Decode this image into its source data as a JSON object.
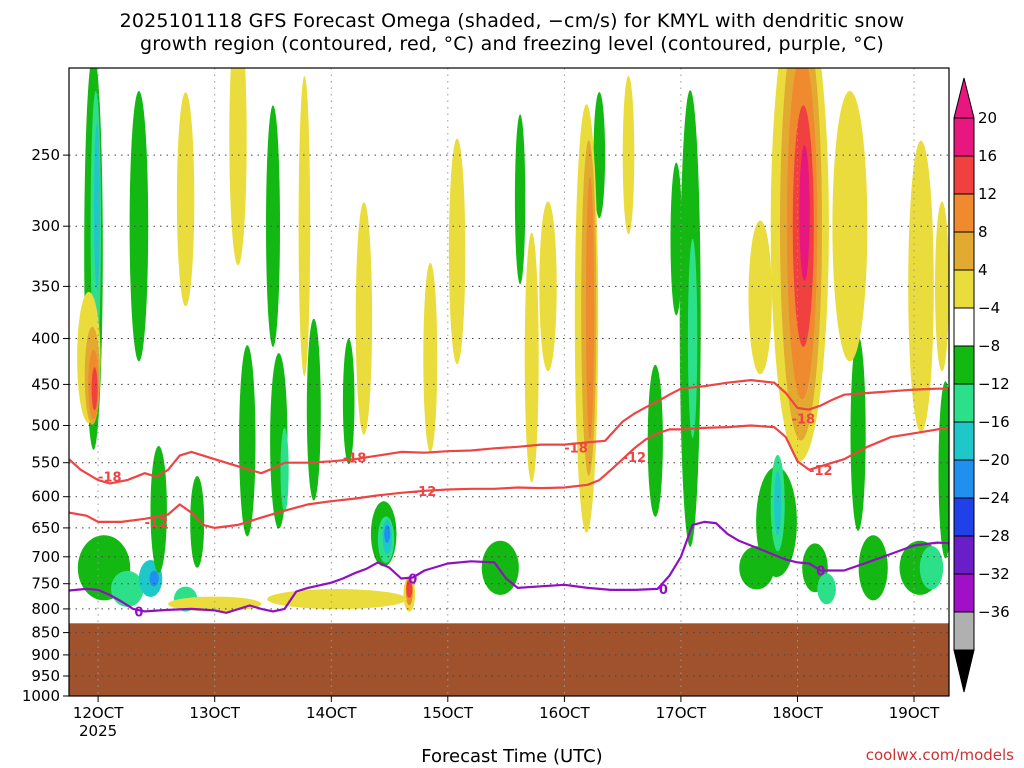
{
  "header": {
    "title_line1": "2025101118 GFS Forecast Omega (shaded, −cm/s) for KMYL with dendritic snow",
    "title_line2": "growth region (contoured, red, °C) and freezing level (contoured, purple, °C)"
  },
  "footer": {
    "credit": "coolwx.com/models"
  },
  "chart_data": {
    "type": "heatmap",
    "title": "2025101118 GFS Forecast Omega (shaded, −cm/s) for KMYL with dendritic snow growth region (contoured, red, °C) and freezing level (contoured, purple, °C)",
    "xlabel": "Forecast Time (UTC)",
    "ylabel": "",
    "y_scale": "log-pressure (hPa), inverted",
    "ylim": [
      1000,
      200
    ],
    "xlim_hours": [
      117.5,
      193
    ],
    "x_ticks": [
      {
        "label": "12OCT",
        "hour": 120,
        "sub": "2025"
      },
      {
        "label": "13OCT",
        "hour": 130,
        "sub": ""
      },
      {
        "label": "14OCT",
        "hour": 140,
        "sub": ""
      },
      {
        "label": "15OCT",
        "hour": 150,
        "sub": ""
      },
      {
        "label": "16OCT",
        "hour": 160,
        "sub": ""
      },
      {
        "label": "17OCT",
        "hour": 170,
        "sub": ""
      },
      {
        "label": "18OCT",
        "hour": 180,
        "sub": ""
      },
      {
        "label": "19OCT",
        "hour": 190,
        "sub": ""
      }
    ],
    "y_ticks": [
      250,
      300,
      350,
      400,
      450,
      500,
      550,
      600,
      650,
      700,
      750,
      800,
      850,
      900,
      950,
      1000
    ],
    "grid": true,
    "colorbar": {
      "placement": "right",
      "labels": [
        "20",
        "16",
        "12",
        "8",
        "4",
        "−4",
        "−8",
        "−12",
        "−16",
        "−20",
        "−24",
        "−28",
        "−32",
        "−36"
      ],
      "colors": [
        "#e8177f",
        "#f04040",
        "#f08a2e",
        "#e2aa30",
        "#eadc3c",
        "#ffffff",
        "#13b813",
        "#2ce08a",
        "#1ec8c8",
        "#2090f0",
        "#2040e8",
        "#6a1ec8",
        "#a010c8",
        "#b0b0b0"
      ],
      "top_arrow_color": "#e8177f",
      "bottom_arrow_color": "#000000"
    },
    "ground_surface_hPa": 830,
    "ground_color": "#a0522d",
    "contours": [
      {
        "label": "-18",
        "color": "#ee4444",
        "points": [
          [
            117.5,
            545
          ],
          [
            118.5,
            560
          ],
          [
            120,
            575
          ],
          [
            121,
            580
          ],
          [
            122.5,
            575
          ],
          [
            124,
            565
          ],
          [
            125,
            570
          ],
          [
            126,
            560
          ],
          [
            127,
            540
          ],
          [
            128,
            535
          ],
          [
            130,
            545
          ],
          [
            132,
            555
          ],
          [
            134,
            565
          ],
          [
            135,
            558
          ],
          [
            136,
            550
          ],
          [
            138,
            550
          ],
          [
            140,
            548
          ],
          [
            142,
            545
          ],
          [
            144,
            540
          ],
          [
            146,
            535
          ],
          [
            148,
            536
          ],
          [
            150,
            534
          ],
          [
            152,
            533
          ],
          [
            154,
            530
          ],
          [
            156,
            528
          ],
          [
            158,
            525
          ],
          [
            160,
            525
          ],
          [
            162,
            522
          ],
          [
            163.5,
            520
          ],
          [
            165,
            495
          ],
          [
            166,
            485
          ],
          [
            167,
            477
          ],
          [
            168,
            470
          ],
          [
            169,
            462
          ],
          [
            170,
            455
          ],
          [
            172,
            452
          ],
          [
            174,
            448
          ],
          [
            176,
            445
          ],
          [
            178,
            448
          ],
          [
            179,
            460
          ],
          [
            180,
            478
          ],
          [
            181,
            480
          ],
          [
            182,
            475
          ],
          [
            183,
            468
          ],
          [
            184,
            462
          ],
          [
            186,
            460
          ],
          [
            188,
            458
          ],
          [
            190,
            456
          ],
          [
            192,
            455
          ],
          [
            193,
            455
          ]
        ],
        "label_positions": [
          [
            121,
            570
          ],
          [
            142,
            543
          ],
          [
            161,
            529
          ],
          [
            180.5,
            491
          ]
        ]
      },
      {
        "label": "-12",
        "color": "#ee4444",
        "points": [
          [
            117.5,
            625
          ],
          [
            119,
            630
          ],
          [
            120,
            640
          ],
          [
            122,
            640
          ],
          [
            124,
            635
          ],
          [
            126,
            628
          ],
          [
            127,
            612
          ],
          [
            128,
            625
          ],
          [
            129,
            645
          ],
          [
            130,
            650
          ],
          [
            132,
            645
          ],
          [
            134,
            633
          ],
          [
            136,
            622
          ],
          [
            138,
            612
          ],
          [
            140,
            607
          ],
          [
            142,
            603
          ],
          [
            144,
            598
          ],
          [
            146,
            594
          ],
          [
            148,
            591
          ],
          [
            150,
            589
          ],
          [
            152,
            588
          ],
          [
            154,
            588
          ],
          [
            156,
            586
          ],
          [
            158,
            587
          ],
          [
            160,
            586
          ],
          [
            162,
            582
          ],
          [
            163,
            575
          ],
          [
            164,
            560
          ],
          [
            165,
            545
          ],
          [
            166,
            530
          ],
          [
            167,
            518
          ],
          [
            168,
            510
          ],
          [
            169,
            505
          ],
          [
            170,
            505
          ],
          [
            172,
            503
          ],
          [
            174,
            502
          ],
          [
            176,
            500
          ],
          [
            178,
            502
          ],
          [
            179,
            515
          ],
          [
            180,
            548
          ],
          [
            181,
            560
          ],
          [
            182,
            555
          ],
          [
            183,
            550
          ],
          [
            184,
            545
          ],
          [
            186,
            528
          ],
          [
            188,
            515
          ],
          [
            190,
            510
          ],
          [
            192,
            505
          ],
          [
            193,
            503
          ]
        ],
        "label_positions": [
          [
            125,
            640
          ],
          [
            148,
            591
          ],
          [
            166,
            542
          ],
          [
            182,
            560
          ]
        ]
      },
      {
        "label": "0",
        "color": "#9010c0",
        "points": [
          [
            117.5,
            763
          ],
          [
            119,
            760
          ],
          [
            120,
            762
          ],
          [
            121,
            772
          ],
          [
            122,
            785
          ],
          [
            123,
            800
          ],
          [
            124,
            805
          ],
          [
            126,
            802
          ],
          [
            128,
            800
          ],
          [
            130,
            803
          ],
          [
            131,
            808
          ],
          [
            133,
            793
          ],
          [
            134,
            800
          ],
          [
            135,
            805
          ],
          [
            136,
            800
          ],
          [
            137,
            765
          ],
          [
            138,
            758
          ],
          [
            140,
            748
          ],
          [
            141,
            740
          ],
          [
            142,
            730
          ],
          [
            143,
            722
          ],
          [
            144,
            710
          ],
          [
            145,
            720
          ],
          [
            146,
            740
          ],
          [
            147,
            738
          ],
          [
            148,
            725
          ],
          [
            150,
            712
          ],
          [
            152,
            708
          ],
          [
            154,
            710
          ],
          [
            155,
            740
          ],
          [
            156,
            758
          ],
          [
            158,
            755
          ],
          [
            160,
            752
          ],
          [
            162,
            758
          ],
          [
            164,
            762
          ],
          [
            166,
            762
          ],
          [
            168,
            760
          ],
          [
            169,
            735
          ],
          [
            170,
            700
          ],
          [
            171,
            645
          ],
          [
            172,
            640
          ],
          [
            173,
            642
          ],
          [
            174,
            660
          ],
          [
            175,
            672
          ],
          [
            177,
            688
          ],
          [
            179,
            705
          ],
          [
            180,
            710
          ],
          [
            181,
            712
          ],
          [
            182,
            725
          ],
          [
            184,
            725
          ],
          [
            186,
            710
          ],
          [
            188,
            695
          ],
          [
            190,
            680
          ],
          [
            192,
            675
          ],
          [
            193,
            676
          ]
        ],
        "label_positions": [
          [
            123.5,
            805
          ],
          [
            147,
            740
          ],
          [
            168.5,
            760
          ],
          [
            182,
            725
          ]
        ]
      }
    ]
  }
}
